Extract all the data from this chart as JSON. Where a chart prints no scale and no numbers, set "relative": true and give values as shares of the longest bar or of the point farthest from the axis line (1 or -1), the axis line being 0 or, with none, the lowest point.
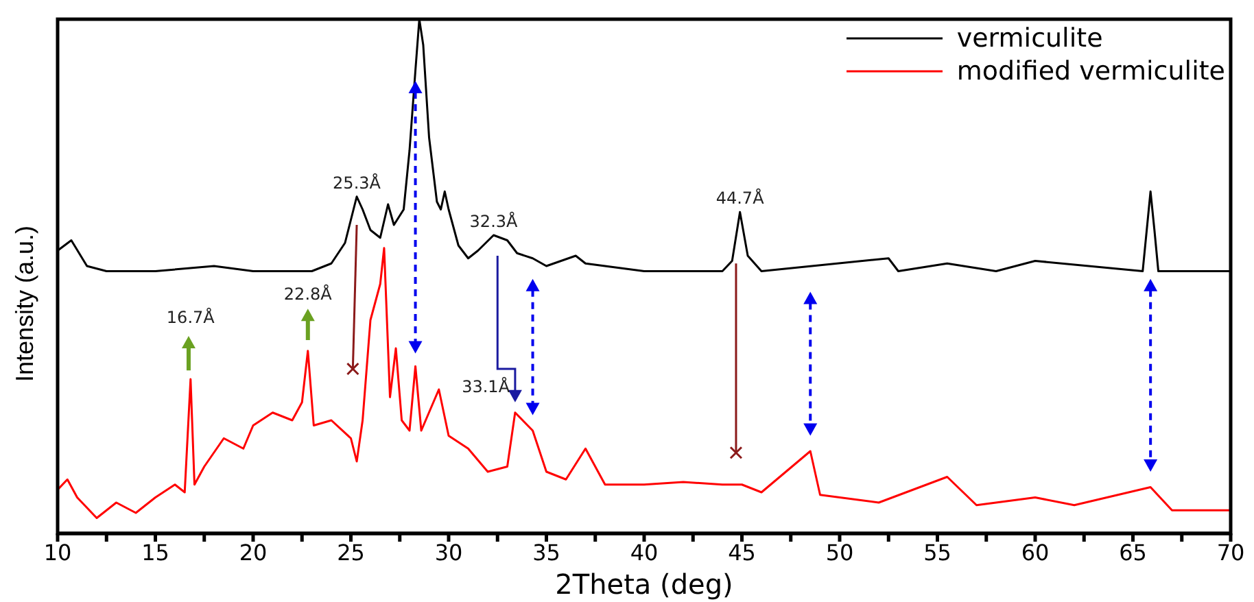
{
  "chart_data": {
    "type": "line",
    "relative": true,
    "xlabel": "2Theta (deg)",
    "ylabel": "Intensity (a.u.)",
    "xlim": [
      10,
      70
    ],
    "xticks": [
      10,
      {
        "value": 12.5,
        "label": null
      },
      15,
      {
        "value": 17.5,
        "label": null
      },
      20,
      {
        "value": 22.5,
        "label": null
      },
      25,
      {
        "value": 27.5,
        "label": null
      },
      30,
      {
        "value": 32.5,
        "label": null
      },
      35,
      {
        "value": 37.5,
        "label": null
      },
      40,
      {
        "value": 42.5,
        "label": null
      },
      45,
      {
        "value": 47.5,
        "label": null
      },
      50,
      {
        "value": 52.5,
        "label": null
      },
      55,
      {
        "value": 57.5,
        "label": null
      },
      60,
      {
        "value": 62.5,
        "label": null
      },
      65,
      {
        "value": 67.5,
        "label": null
      },
      70
    ],
    "legend": "top right",
    "line_style": "solid",
    "marker": "none",
    "series": [
      {
        "name": "vermiculite",
        "color": "#000000",
        "x": [
          10,
          10.7,
          11.5,
          12.5,
          15,
          18,
          20,
          23,
          24,
          24.7,
          25.3,
          25.6,
          26,
          26.5,
          26.9,
          27.2,
          27.7,
          28,
          28.3,
          28.5,
          28.7,
          29,
          29.4,
          29.6,
          29.8,
          30,
          30.5,
          31,
          31.5,
          32.3,
          33,
          33.5,
          34.3,
          35,
          36.5,
          37,
          40,
          44,
          44.5,
          44.9,
          45.3,
          46,
          52.5,
          53,
          55.5,
          58,
          60,
          65.5,
          65.9,
          66.1,
          66.3,
          70
        ],
        "values": [
          0.55,
          0.57,
          0.52,
          0.51,
          0.51,
          0.52,
          0.51,
          0.51,
          0.525,
          0.565,
          0.655,
          0.63,
          0.59,
          0.575,
          0.64,
          0.6,
          0.63,
          0.745,
          0.9,
          1,
          0.95,
          0.77,
          0.645,
          0.63,
          0.665,
          0.63,
          0.56,
          0.535,
          0.55,
          0.58,
          0.57,
          0.545,
          0.535,
          0.52,
          0.54,
          0.525,
          0.51,
          0.51,
          0.53,
          0.625,
          0.54,
          0.51,
          0.535,
          0.51,
          0.525,
          0.51,
          0.53,
          0.51,
          0.665,
          0.59,
          0.51,
          0.51
        ]
      },
      {
        "name": "modified vermiculite",
        "color": "#ff0000",
        "x": [
          10,
          10.5,
          11,
          12,
          13,
          14,
          15,
          16,
          16.5,
          16.8,
          17,
          17.5,
          18.5,
          19.5,
          20,
          21,
          22,
          22.5,
          22.8,
          23.1,
          24,
          25,
          25.3,
          25.6,
          26,
          26.5,
          26.7,
          27,
          27.3,
          27.6,
          28,
          28.3,
          28.6,
          29.5,
          30,
          31,
          32,
          33,
          33.4,
          34.3,
          35,
          36,
          37,
          38,
          40,
          42,
          44,
          45,
          46,
          48.5,
          49,
          52,
          55.5,
          57,
          60,
          62,
          65.9,
          67,
          70
        ],
        "values": [
          0.085,
          0.105,
          0.07,
          0.03,
          0.06,
          0.04,
          0.07,
          0.095,
          0.08,
          0.3,
          0.095,
          0.13,
          0.185,
          0.165,
          0.21,
          0.235,
          0.22,
          0.255,
          0.355,
          0.21,
          0.22,
          0.185,
          0.14,
          0.22,
          0.415,
          0.485,
          0.555,
          0.265,
          0.36,
          0.22,
          0.2,
          0.325,
          0.2,
          0.28,
          0.19,
          0.165,
          0.12,
          0.13,
          0.235,
          0.2,
          0.12,
          0.105,
          0.165,
          0.095,
          0.095,
          0.1,
          0.095,
          0.095,
          0.08,
          0.16,
          0.075,
          0.06,
          0.11,
          0.055,
          0.07,
          0.055,
          0.09,
          0.045,
          0.045
        ]
      }
    ],
    "annotations": [
      "16.7Å",
      "22.8Å",
      {
        "text": "25.3Å",
        "x": 25.3,
        "y": 0.655
      },
      {
        "text": "32.3Å",
        "x": 32.3,
        "y": 0.58
      },
      "33.1Å",
      {
        "text": "44.7Å",
        "x": 44.9,
        "y": 0.625
      }
    ]
  }
}
